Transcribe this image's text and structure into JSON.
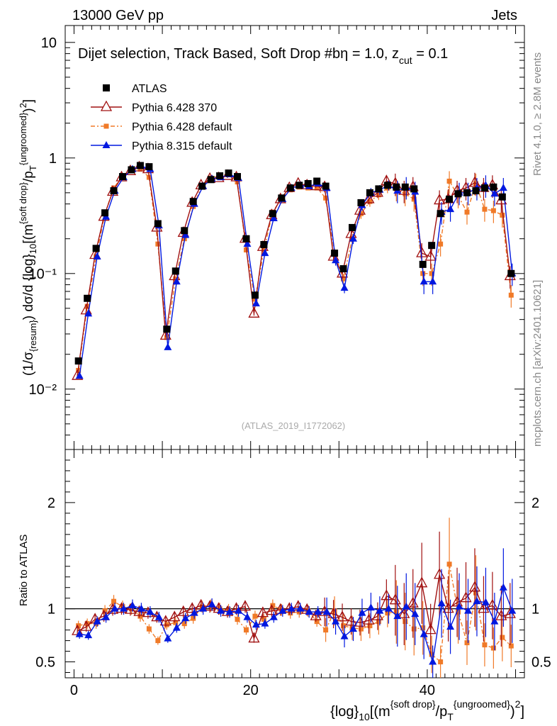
{
  "header": {
    "left": "13000 GeV pp",
    "right": "Jets"
  },
  "title": "Dijet selection, Track Based, Soft Drop #bη = 1.0, z",
  "title_sub": "cut",
  "title_tail": " = 0.1",
  "side_right_top": "Rivet 4.1.0, ≥ 2.8M events",
  "side_right_bottom": "mcplots.cern.ch [arXiv:2401.10621]",
  "analysis_id": "(ATLAS_2019_I1772062)",
  "colors": {
    "atlas": "#000000",
    "py6_370": "#a01010",
    "py6_def": "#f07a28",
    "py8": "#0018e0"
  },
  "chart_data": {
    "type": "line",
    "x": [
      0.5,
      1.5,
      2.5,
      3.5,
      4.5,
      5.5,
      6.5,
      7.5,
      8.5,
      9.5,
      10.5,
      11.5,
      12.5,
      13.5,
      14.5,
      15.5,
      16.5,
      17.5,
      18.5,
      19.5,
      20.5,
      21.5,
      22.5,
      23.5,
      24.5,
      25.5,
      26.5,
      27.5,
      28.5,
      29.5,
      30.5,
      31.5,
      32.5,
      33.5,
      34.5,
      35.5,
      36.5,
      37.5,
      38.5,
      39.5,
      40.5,
      41.5,
      42.5,
      43.5,
      44.5,
      45.5,
      46.5,
      47.5,
      48.5,
      49.5
    ],
    "xlim": [
      -1,
      51
    ],
    "xticks": [
      0,
      20,
      40
    ],
    "xlabel": "{log}_10[(m^{soft drop}/p_T^{ungroomed})^2]",
    "main": {
      "ylabel": "(1/σ_{resum}) dσ/d {log}_10[(m^{soft drop}/p_T^{ungroomed})^2]",
      "yscale": "log",
      "ylim": [
        0.003,
        14
      ],
      "ytick_labels": [
        "10",
        "1",
        "10⁻¹",
        "10⁻²"
      ],
      "ytick_values": [
        10,
        1,
        0.1,
        0.01
      ],
      "series": [
        {
          "name": "ATLAS",
          "key": "atlas",
          "marker": "square",
          "values": [
            0.0175,
            0.061,
            0.165,
            0.335,
            0.52,
            0.69,
            0.79,
            0.86,
            0.84,
            0.27,
            0.033,
            0.105,
            0.235,
            0.42,
            0.57,
            0.65,
            0.7,
            0.74,
            0.69,
            0.2,
            0.065,
            0.178,
            0.33,
            0.45,
            0.55,
            0.58,
            0.6,
            0.63,
            0.57,
            0.15,
            0.11,
            0.25,
            0.41,
            0.5,
            0.54,
            0.58,
            0.56,
            0.56,
            0.54,
            0.12,
            0.175,
            0.33,
            0.44,
            0.49,
            0.5,
            0.52,
            0.55,
            0.56,
            0.46,
            0.1
          ]
        },
        {
          "name": "Pythia 6.428 370",
          "key": "py6_370",
          "marker": "triangle-open",
          "values": [
            0.013,
            0.048,
            0.145,
            0.31,
            0.51,
            0.68,
            0.77,
            0.83,
            0.8,
            0.25,
            0.029,
            0.095,
            0.225,
            0.41,
            0.58,
            0.66,
            0.67,
            0.7,
            0.68,
            0.2,
            0.045,
            0.17,
            0.32,
            0.44,
            0.55,
            0.6,
            0.58,
            0.57,
            0.56,
            0.14,
            0.1,
            0.22,
            0.35,
            0.44,
            0.5,
            0.63,
            0.6,
            0.52,
            0.56,
            0.15,
            0.14,
            0.43,
            0.44,
            0.52,
            0.55,
            0.61,
            0.55,
            0.58,
            0.43,
            0.095
          ]
        },
        {
          "name": "Pythia 6.428 default",
          "key": "py6_def",
          "marker": "square-small",
          "values": [
            0.0145,
            0.052,
            0.14,
            0.33,
            0.55,
            0.7,
            0.79,
            0.8,
            0.68,
            0.18,
            0.028,
            0.09,
            0.2,
            0.38,
            0.58,
            0.67,
            0.7,
            0.73,
            0.62,
            0.16,
            0.06,
            0.16,
            0.34,
            0.45,
            0.53,
            0.56,
            0.55,
            0.55,
            0.45,
            0.15,
            0.09,
            0.2,
            0.33,
            0.42,
            0.48,
            0.55,
            0.54,
            0.49,
            0.44,
            0.1,
            0.1,
            0.18,
            0.63,
            0.47,
            0.34,
            0.6,
            0.36,
            0.35,
            0.32,
            0.065
          ]
        },
        {
          "name": "Pythia 8.315 default",
          "key": "py8",
          "marker": "triangle",
          "values": [
            0.013,
            0.045,
            0.14,
            0.31,
            0.52,
            0.68,
            0.8,
            0.85,
            0.8,
            0.26,
            0.023,
            0.085,
            0.215,
            0.4,
            0.57,
            0.66,
            0.68,
            0.72,
            0.67,
            0.18,
            0.055,
            0.15,
            0.3,
            0.44,
            0.55,
            0.58,
            0.57,
            0.6,
            0.55,
            0.13,
            0.075,
            0.2,
            0.39,
            0.5,
            0.53,
            0.58,
            0.52,
            0.56,
            0.51,
            0.085,
            0.085,
            0.34,
            0.36,
            0.5,
            0.5,
            0.55,
            0.58,
            0.49,
            0.55,
            0.1
          ]
        }
      ]
    },
    "ratio": {
      "ylabel": "Ratio to ATLAS",
      "ylim": [
        0.35,
        2.5
      ],
      "ytick_labels": [
        "0.5",
        "1",
        "2"
      ],
      "ytick_values": [
        0.5,
        1,
        2
      ],
      "series": [
        {
          "name": "Pythia 6.428 370",
          "key": "py6_370",
          "values": [
            0.79,
            0.83,
            0.9,
            0.93,
            0.99,
            1.0,
            0.99,
            0.97,
            0.96,
            0.92,
            0.88,
            0.92,
            0.97,
            1.0,
            1.03,
            1.02,
            1.0,
            0.97,
            1.0,
            1.02,
            0.72,
            0.96,
            0.98,
            0.99,
            1.0,
            1.02,
            0.99,
            0.93,
            0.97,
            0.95,
            0.92,
            0.88,
            0.87,
            0.89,
            0.93,
            1.12,
            1.08,
            0.95,
            1.05,
            1.24,
            0.8,
            1.32,
            1.0,
            1.06,
            1.1,
            1.2,
            1.0,
            1.03,
            0.93,
            0.95
          ]
        },
        {
          "name": "Pythia 6.428 default",
          "key": "py6_def",
          "values": [
            0.84,
            0.86,
            0.86,
            0.98,
            1.07,
            1.02,
            1.0,
            0.93,
            0.81,
            0.7,
            0.85,
            0.87,
            0.86,
            0.91,
            1.02,
            1.03,
            1.0,
            0.99,
            0.9,
            0.8,
            0.93,
            0.9,
            1.03,
            0.99,
            0.96,
            0.97,
            0.98,
            0.88,
            0.8,
            0.98,
            0.84,
            0.82,
            0.81,
            0.84,
            0.88,
            0.96,
            0.97,
            0.88,
            0.81,
            0.82,
            0.57,
            0.5,
            1.42,
            0.97,
            0.68,
            1.15,
            0.66,
            0.63,
            0.73,
            0.65
          ]
        },
        {
          "name": "Pythia 8.315 default",
          "key": "py8",
          "values": [
            0.76,
            0.75,
            0.88,
            0.92,
            1.0,
            1.0,
            1.03,
            1.0,
            0.97,
            0.92,
            0.72,
            0.82,
            0.91,
            0.96,
            1.0,
            1.04,
            0.98,
            0.97,
            0.98,
            0.92,
            0.85,
            0.86,
            0.92,
            0.98,
            1.0,
            1.0,
            0.97,
            0.97,
            0.97,
            0.88,
            0.74,
            0.81,
            0.96,
            1.01,
            0.98,
            1.0,
            0.93,
            1.02,
            0.95,
            0.76,
            0.5,
            1.05,
            0.83,
            1.02,
            0.98,
            1.07,
            1.06,
            0.88,
            1.2,
            0.98
          ]
        }
      ]
    },
    "legend": [
      "ATLAS",
      "Pythia 6.428 370",
      "Pythia 6.428 default",
      "Pythia 8.315 default"
    ]
  }
}
